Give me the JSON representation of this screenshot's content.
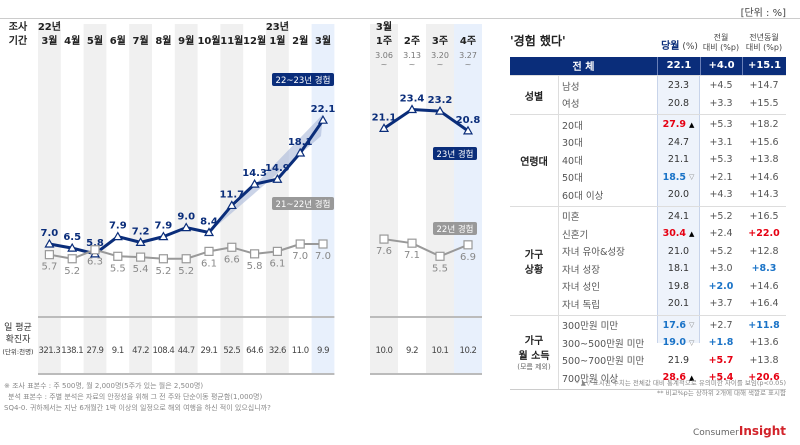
{
  "unit_label": "[단위 : %]",
  "chart_data": [
    {
      "type": "line",
      "title": "월별",
      "x_header": "조사 기간",
      "categories": [
        "22년 3월",
        "4월",
        "5월",
        "6월",
        "7월",
        "8월",
        "9월",
        "10월",
        "11월",
        "12월",
        "23년 1월",
        "2월",
        "3월"
      ],
      "cat_top": [
        "22년",
        "",
        "",
        "",
        "",
        "",
        "",
        "",
        "",
        "",
        "23년",
        "",
        ""
      ],
      "cat_bottom": [
        "3월",
        "4월",
        "5월",
        "6월",
        "7월",
        "8월",
        "9월",
        "10월",
        "11월",
        "12월",
        "1월",
        "2월",
        "3월"
      ],
      "series": [
        {
          "name": "22~23년 경험",
          "color": "#0a2d7a",
          "values": [
            7.0,
            6.5,
            5.8,
            7.9,
            7.2,
            7.9,
            9.0,
            8.4,
            11.7,
            14.3,
            14.9,
            18.1,
            22.1
          ],
          "labels": [
            "7.0",
            "6.5",
            "5.8",
            "7.9",
            "7.2",
            "7.9",
            "9.0",
            "8.4",
            "11.7",
            "14.3",
            "14.9",
            "18.1",
            "22.1"
          ]
        },
        {
          "name": "21~22년 경험",
          "color": "#999999",
          "values": [
            5.7,
            5.2,
            6.3,
            5.5,
            5.4,
            5.2,
            5.2,
            6.1,
            6.6,
            5.8,
            6.1,
            7.0,
            7.0
          ],
          "labels": [
            "5.7",
            "5.2",
            "6.3",
            "5.5",
            "5.4",
            "5.2",
            "5.2",
            "6.1",
            "6.6",
            "5.8",
            "6.1",
            "7.0",
            "7.0"
          ]
        }
      ],
      "confirmed_label": [
        "일 평균",
        "확진자",
        "(단위:천명)"
      ],
      "confirmed": [
        "321.3",
        "138.1",
        "27.9",
        "9.1",
        "47.2",
        "108.4",
        "44.7",
        "29.1",
        "52.5",
        "64.6",
        "32.6",
        "11.0",
        "9.9"
      ]
    },
    {
      "type": "line",
      "title": "주별",
      "categories": [
        "3월 1주",
        "2주",
        "3주",
        "4주"
      ],
      "cat_top": [
        "3월",
        "",
        "",
        ""
      ],
      "cat_bottom": [
        "1주",
        "2주",
        "3주",
        "4주"
      ],
      "dates": [
        "3.06",
        "3.13",
        "3.20",
        "3.27"
      ],
      "series": [
        {
          "name": "23년 경험",
          "color": "#0a2d7a",
          "values": [
            21.1,
            23.4,
            23.2,
            20.8
          ],
          "labels": [
            "21.1",
            "23.4",
            "23.2",
            "20.8"
          ]
        },
        {
          "name": "22년 경험",
          "color": "#999999",
          "values": [
            7.6,
            7.1,
            5.5,
            6.9
          ],
          "labels": [
            "7.6",
            "7.1",
            "5.5",
            "6.9"
          ]
        }
      ],
      "confirmed": [
        "10.0",
        "9.2",
        "10.1",
        "10.2"
      ]
    }
  ],
  "footnotes": [
    "※ 조사 표본수 : 주 500명, 월 2,000명(5주가 있는 월은 2,500명)",
    "분석 표본수 : 주별 분석은 자료의 안정성을 위해 그 전 주와 단순이동 평균함(1,000명)",
    "SQ4-0. 귀하께서는 지난 6개월간 1박 이상의 일정으로 해외 여행을 하신 적이 있으십니까?"
  ],
  "table": {
    "title": "'경험 했다'",
    "headers": {
      "cur": "당월",
      "cur_unit": "(%)",
      "mom1": "전월",
      "mom2": "대비 (%p)",
      "yoy1": "전년동월",
      "yoy2": "대비 (%p)"
    },
    "total": {
      "label": "전 체",
      "cur": "22.1",
      "mom": "+4.0",
      "yoy": "+15.1"
    },
    "groups": [
      {
        "label": [
          "성별"
        ],
        "rows": [
          {
            "label": "남성",
            "cur": "23.3",
            "mom": "+4.5",
            "yoy": "+14.7"
          },
          {
            "label": "여성",
            "cur": "20.8",
            "mom": "+3.3",
            "yoy": "+15.5"
          }
        ]
      },
      {
        "label": [
          "연령대"
        ],
        "rows": [
          {
            "label": "20대",
            "cur": "27.9",
            "cur_c": "red",
            "mark": "▲",
            "mom": "+5.3",
            "yoy": "+18.2"
          },
          {
            "label": "30대",
            "cur": "24.7",
            "mom": "+3.1",
            "yoy": "+15.6"
          },
          {
            "label": "40대",
            "cur": "21.1",
            "mom": "+5.3",
            "yoy": "+13.8"
          },
          {
            "label": "50대",
            "cur": "18.5",
            "cur_c": "blue",
            "mark": "▽",
            "mom": "+2.1",
            "yoy": "+14.6"
          },
          {
            "label": "60대 이상",
            "cur": "20.0",
            "mom": "+4.3",
            "yoy": "+14.3"
          }
        ]
      },
      {
        "label": [
          "가구",
          "상황"
        ],
        "rows": [
          {
            "label": "미혼",
            "cur": "24.1",
            "mom": "+5.2",
            "yoy": "+16.5"
          },
          {
            "label": "신혼기",
            "cur": "30.4",
            "cur_c": "red",
            "mark": "▲",
            "mom": "+2.4",
            "yoy": "+22.0",
            "yoy_c": "red"
          },
          {
            "label": "자녀 유아&성장",
            "cur": "21.0",
            "mom": "+5.2",
            "yoy": "+12.8"
          },
          {
            "label": "자녀 성장",
            "cur": "18.1",
            "mom": "+3.0",
            "yoy": "+8.3",
            "yoy_c": "blue"
          },
          {
            "label": "자녀 성인",
            "cur": "19.8",
            "mom": "+2.0",
            "mom_c": "blue",
            "yoy": "+14.6"
          },
          {
            "label": "자녀 독립",
            "cur": "20.1",
            "mom": "+3.7",
            "yoy": "+16.4"
          }
        ]
      },
      {
        "label": [
          "가구",
          "월 소득",
          "(모름 제외)"
        ],
        "rows": [
          {
            "label": "300만원 미만",
            "cur": "17.6",
            "cur_c": "blue",
            "mark": "▽",
            "mom": "+2.7",
            "yoy": "+11.8",
            "yoy_c": "blue"
          },
          {
            "label": "300~500만원 미만",
            "cur": "19.0",
            "cur_c": "blue",
            "mark": "▽",
            "mom": "+1.8",
            "mom_c": "blue",
            "yoy": "+13.6"
          },
          {
            "label": "500~700만원 미만",
            "cur": "21.9",
            "mom": "+5.7",
            "mom_c": "red",
            "yoy": "+13.8"
          },
          {
            "label": "700만원 이상",
            "cur": "28.6",
            "cur_c": "red",
            "mark": "▲",
            "mom": "+5.4",
            "mom_c": "red",
            "yoy": "+20.6",
            "yoy_c": "red"
          }
        ]
      }
    ],
    "notes": [
      "* ▲▽ 표시된 수치는 전체값 대비 통계적으로 유의미한 차이를 보임(p<0.05)",
      "** 비교%p는 상하위 2개에 대해 색깔로 표시함"
    ]
  },
  "logo": {
    "a": "Consumer",
    "b": "Insight"
  }
}
